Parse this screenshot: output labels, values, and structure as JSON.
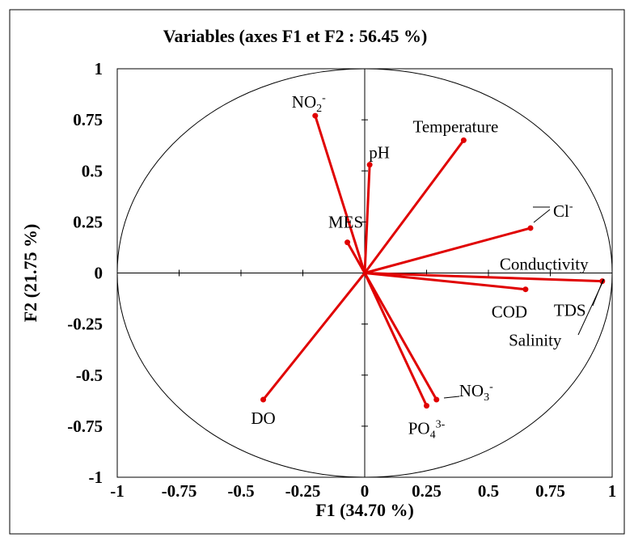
{
  "chart_data": {
    "type": "scatter",
    "subtype": "pca-correlation-circle",
    "title": "Variables (axes F1 et F2 : 56.45 %)",
    "xlabel": "F1 (34.70 %)",
    "ylabel": "F2 (21.75 %)",
    "xlim": [
      -1,
      1
    ],
    "ylim": [
      -1,
      1
    ],
    "xticks": [
      "-1",
      "-0.75",
      "-0.5",
      "-0.25",
      "0",
      "0.25",
      "0.5",
      "0.75",
      "1"
    ],
    "yticks": [
      "1",
      "0.75",
      "0.5",
      "0.25",
      "0",
      "-0.25",
      "-0.5",
      "-0.75",
      "-1"
    ],
    "grid": false,
    "circle": true,
    "vector_color": "#e00000",
    "variables": [
      {
        "name": "NO2",
        "sub": "2",
        "sup": "-",
        "x": -0.2,
        "y": 0.77
      },
      {
        "name": "pH",
        "sub": "",
        "sup": "",
        "x": 0.02,
        "y": 0.53
      },
      {
        "name": "Temperature",
        "sub": "",
        "sup": "",
        "x": 0.4,
        "y": 0.65
      },
      {
        "name": "Cl",
        "sub": "",
        "sup": "-",
        "x": 0.67,
        "y": 0.22
      },
      {
        "name": "MES",
        "sub": "",
        "sup": "",
        "x": -0.07,
        "y": 0.15
      },
      {
        "name": "Conductivity",
        "sub": "",
        "sup": "",
        "x": 0.96,
        "y": -0.04
      },
      {
        "name": "TDS",
        "sub": "",
        "sup": "",
        "x": 0.96,
        "y": -0.04
      },
      {
        "name": "Salinity",
        "sub": "",
        "sup": "",
        "x": 0.96,
        "y": -0.04
      },
      {
        "name": "COD",
        "sub": "",
        "sup": "",
        "x": 0.65,
        "y": -0.08
      },
      {
        "name": "DO",
        "sub": "",
        "sup": "",
        "x": -0.41,
        "y": -0.62
      },
      {
        "name": "PO4",
        "sub": "4",
        "sup": "3-",
        "x": 0.25,
        "y": -0.65
      },
      {
        "name": "NO3",
        "sub": "3",
        "sup": "-",
        "x": 0.29,
        "y": -0.62
      }
    ]
  }
}
